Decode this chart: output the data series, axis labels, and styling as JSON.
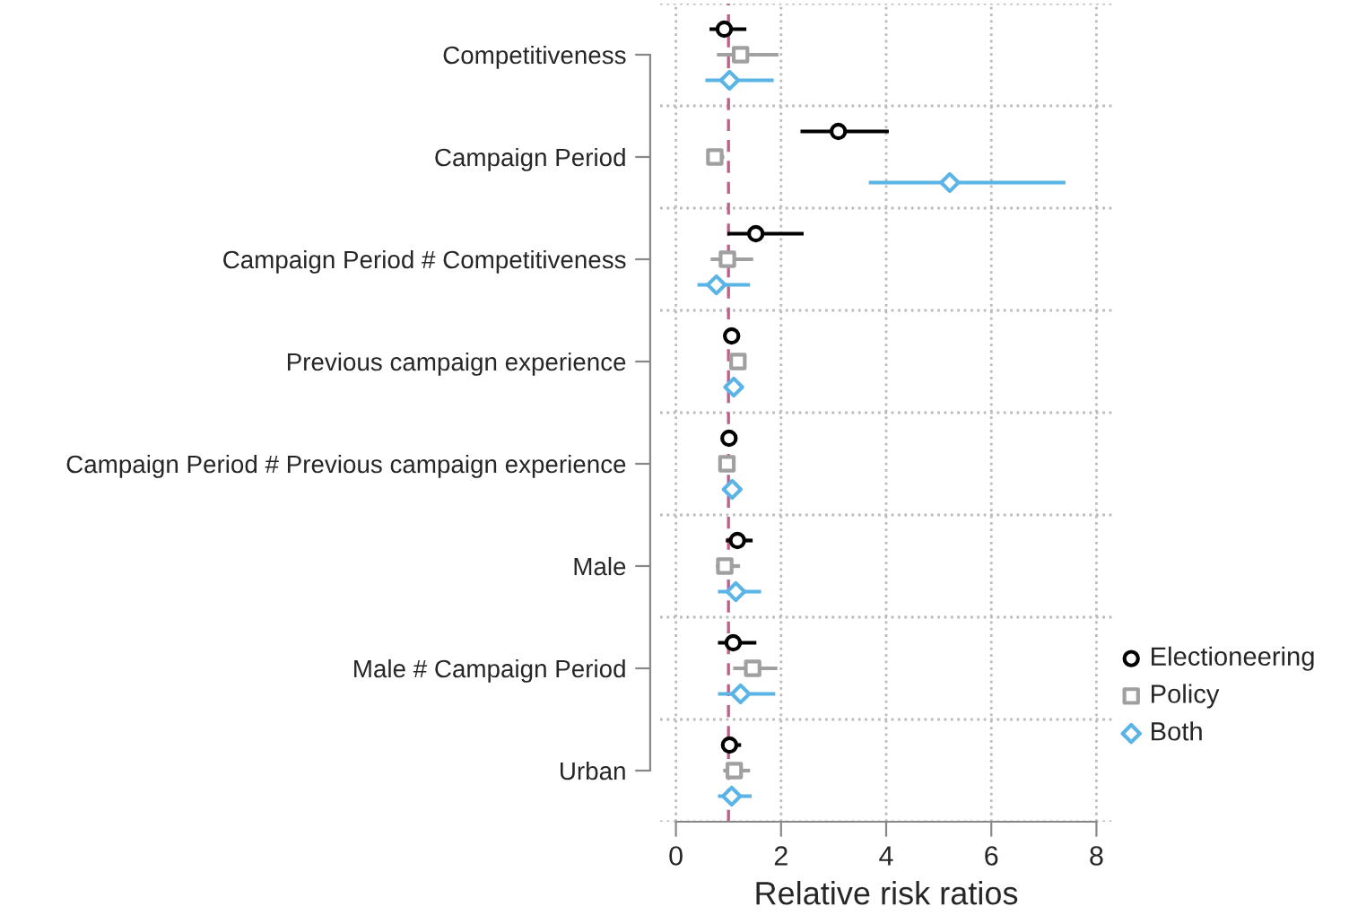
{
  "chart_data": {
    "type": "scatter",
    "orientation": "horizontal",
    "xlabel": "Relative risk ratios",
    "categories": [
      "Competitiveness",
      "Campaign Period",
      "Campaign Period # Competitiveness",
      "Previous campaign experience",
      "Campaign Period # Previous campaign experience",
      "Male",
      "Male # Campaign Period",
      "Urban"
    ],
    "series": [
      {
        "name": "Electioneering",
        "color": "#000000",
        "marker": "circle",
        "values": [
          0.92,
          3.09,
          1.52,
          1.06,
          1.01,
          1.17,
          1.09,
          1.02
        ],
        "errors": [
          [
            0.64,
            1.34
          ],
          [
            2.37,
            4.05
          ],
          [
            0.98,
            2.43
          ],
          null,
          null,
          [
            0.95,
            1.46
          ],
          [
            0.8,
            1.53
          ],
          [
            0.87,
            1.24
          ]
        ]
      },
      {
        "name": "Policy",
        "color": "#a0a0a0",
        "marker": "square",
        "values": [
          1.23,
          0.74,
          0.98,
          1.18,
          0.97,
          0.93,
          1.46,
          1.11
        ],
        "errors": [
          [
            0.78,
            1.95
          ],
          [
            0.6,
            0.92
          ],
          [
            0.66,
            1.47
          ],
          null,
          null,
          [
            0.76,
            1.22
          ],
          [
            1.09,
            1.93
          ],
          [
            0.9,
            1.41
          ]
        ]
      },
      {
        "name": "Both",
        "color": "#5ab4e5",
        "marker": "diamond",
        "values": [
          1.02,
          5.21,
          0.77,
          1.1,
          1.07,
          1.14,
          1.23,
          1.06
        ],
        "errors": [
          [
            0.56,
            1.86
          ],
          [
            3.67,
            7.41
          ],
          [
            0.41,
            1.41
          ],
          null,
          null,
          [
            0.8,
            1.62
          ],
          [
            0.8,
            1.89
          ],
          [
            0.8,
            1.44
          ]
        ]
      }
    ],
    "xlim": [
      -0.3,
      8.3
    ],
    "xticks": [
      0,
      2,
      4,
      6,
      8
    ],
    "ref_lines": [
      {
        "axis": "x",
        "value": 1,
        "color": "#c0608a",
        "line_style": "dashed"
      }
    ],
    "grid": true,
    "legend": "bottom right"
  }
}
